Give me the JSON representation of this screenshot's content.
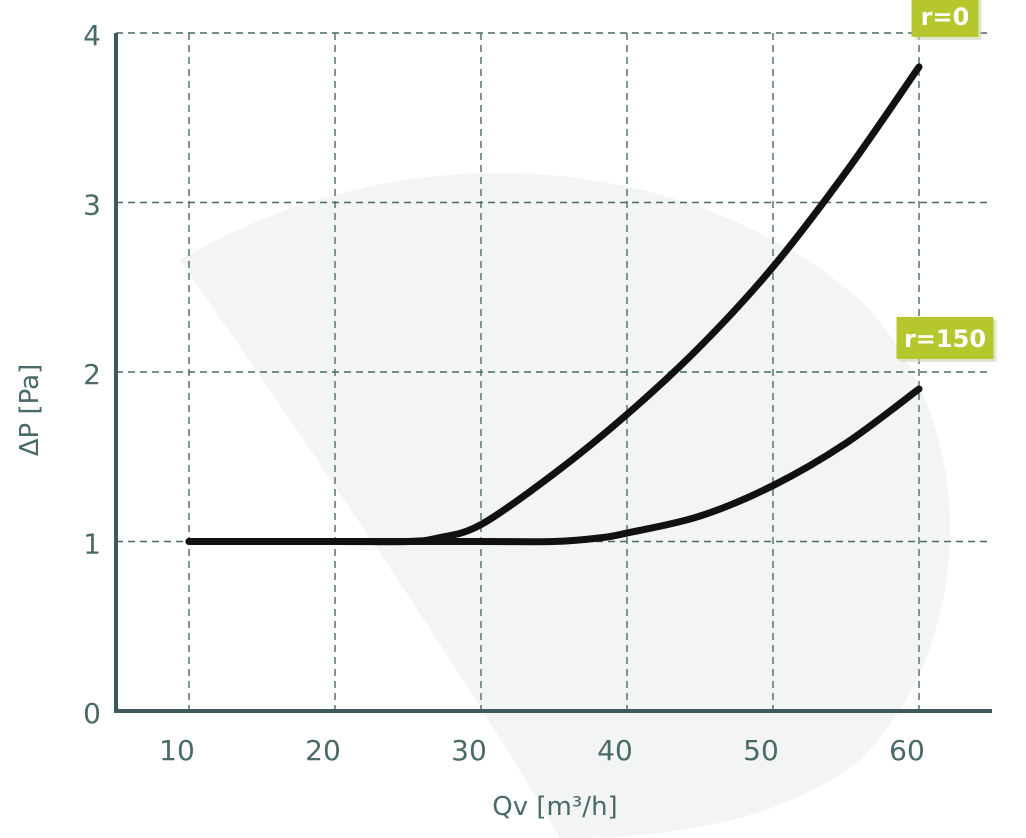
{
  "chart_data": {
    "type": "line",
    "xlabel": "Qv [m³/h]",
    "ylabel": "ΔP [Pa]",
    "xlim": [
      5,
      65
    ],
    "ylim": [
      0,
      4
    ],
    "x_ticks": [
      "10",
      "20",
      "30",
      "40",
      "50",
      "60"
    ],
    "y_ticks": [
      "0",
      "1",
      "2",
      "3",
      "4"
    ],
    "grid": true,
    "series": [
      {
        "name": "r=0",
        "x": [
          10,
          20,
          25,
          27,
          30,
          35,
          40,
          45,
          50,
          55,
          60
        ],
        "y": [
          1.0,
          1.0,
          1.0,
          1.02,
          1.1,
          1.4,
          1.75,
          2.15,
          2.62,
          3.18,
          3.8
        ]
      },
      {
        "name": "r=150",
        "x": [
          10,
          20,
          30,
          35,
          38,
          40,
          45,
          50,
          55,
          60
        ],
        "y": [
          1.0,
          1.0,
          1.0,
          1.0,
          1.02,
          1.05,
          1.15,
          1.33,
          1.58,
          1.9
        ]
      }
    ],
    "colors": {
      "line": "#111111",
      "axis": "#3f5a5a",
      "grid": "#4a6a6a",
      "badge": "#b5c72d"
    }
  }
}
